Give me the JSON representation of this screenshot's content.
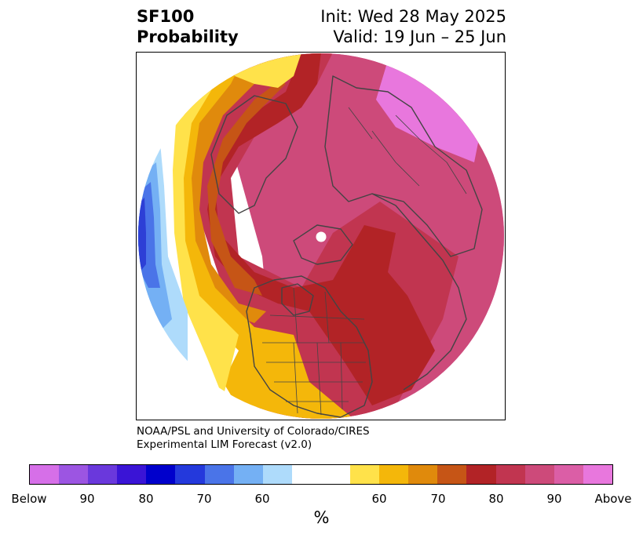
{
  "title": {
    "left_line1": "SF100",
    "left_line2": "Probability",
    "right_line1": "Init: Wed 28 May 2025",
    "right_line2": "Valid: 19 Jun – 25 Jun"
  },
  "credit": {
    "line1": "NOAA/PSL and University of Colorado/CIRES",
    "line2": "Experimental LIM Forecast (v2.0)"
  },
  "colorbar": {
    "colors": [
      "#d66fe8",
      "#9c55e2",
      "#6a38dc",
      "#3a14d6",
      "#0000cc",
      "#2439dc",
      "#4a74e8",
      "#74b0f4",
      "#aedbfb",
      "#ffffff",
      "#ffe24a",
      "#f4b70a",
      "#e08a0c",
      "#c65516",
      "#b22326",
      "#c13550",
      "#cd4a7a",
      "#db5ea6",
      "#e877dd"
    ],
    "tick_labels": [
      "Below",
      "90",
      "80",
      "70",
      "60",
      "60",
      "70",
      "80",
      "90",
      "Above"
    ],
    "unit_label": "%"
  },
  "map": {
    "projection": "north-polar-stereographic",
    "palette": {
      "dark_blue": "#2d3fd6",
      "blue": "#4a74e8",
      "mid_blue": "#74b0f4",
      "light_blue": "#aedbfb",
      "yellow": "#ffe24a",
      "gold": "#f4b70a",
      "orange": "#e08a0c",
      "dark_orange": "#c65516",
      "red": "#b22326",
      "crimson": "#c13550",
      "rose": "#cd4a7a",
      "pink": "#db5ea6",
      "magenta": "#e877dd",
      "coastline": "#444444"
    }
  }
}
